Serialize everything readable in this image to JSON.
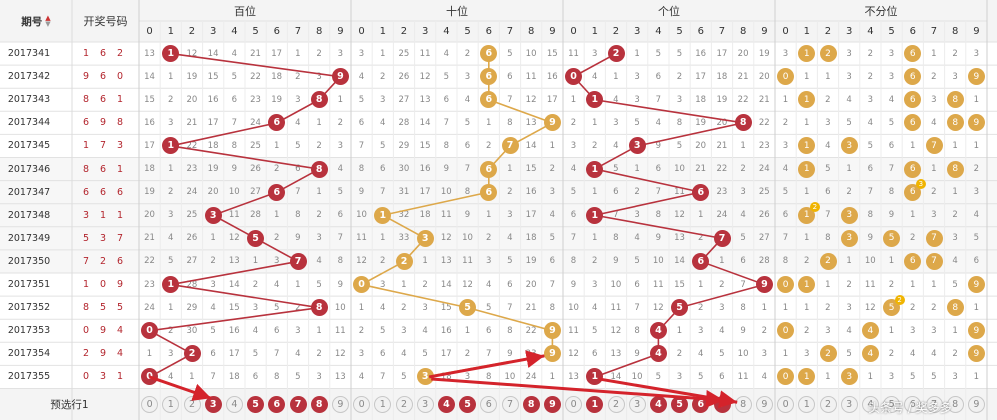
{
  "header": {
    "issue_label": "期号",
    "draw_label": "开奖号码",
    "groups": [
      "百位",
      "十位",
      "个位",
      "不分位"
    ],
    "digits": [
      "0",
      "1",
      "2",
      "3",
      "4",
      "5",
      "6",
      "7",
      "8",
      "9"
    ]
  },
  "colors": {
    "position_ball": "#b8323d",
    "tens_ball": "#dda84a",
    "nonpos_ball": "#dda84a",
    "count_badge": "#f0b400",
    "arrow": "#d4232b"
  },
  "rows": [
    {
      "issue": "2017341",
      "draw": [
        "1",
        "6",
        "2"
      ],
      "g0": [
        "13",
        "1",
        "12",
        "14",
        "4",
        "21",
        "17",
        "1",
        "2",
        "3"
      ],
      "g1": [
        "3",
        "1",
        "25",
        "11",
        "4",
        "2",
        "6",
        "5",
        "10",
        "15"
      ],
      "g2": [
        "11",
        "3",
        "2",
        "1",
        "5",
        "5",
        "16",
        "17",
        "20",
        "19"
      ],
      "g3": [
        "3",
        "1",
        "2",
        "3",
        "2",
        "3",
        "6",
        "1",
        "2",
        "3"
      ]
    },
    {
      "issue": "2017342",
      "draw": [
        "9",
        "6",
        "0"
      ],
      "g0": [
        "14",
        "1",
        "19",
        "15",
        "5",
        "22",
        "18",
        "2",
        "3",
        "9"
      ],
      "g1": [
        "4",
        "2",
        "26",
        "12",
        "5",
        "3",
        "6",
        "6",
        "11",
        "16"
      ],
      "g2": [
        "0",
        "4",
        "1",
        "3",
        "6",
        "2",
        "17",
        "18",
        "21",
        "20"
      ],
      "g3": [
        "0",
        "1",
        "1",
        "3",
        "2",
        "3",
        "6",
        "2",
        "3",
        "9"
      ]
    },
    {
      "issue": "2017343",
      "draw": [
        "8",
        "6",
        "1"
      ],
      "g0": [
        "15",
        "2",
        "20",
        "16",
        "6",
        "23",
        "19",
        "3",
        "8",
        "1"
      ],
      "g1": [
        "5",
        "3",
        "27",
        "13",
        "6",
        "4",
        "6",
        "7",
        "12",
        "17"
      ],
      "g2": [
        "1",
        "1",
        "4",
        "3",
        "7",
        "3",
        "18",
        "19",
        "22",
        "21"
      ],
      "g3": [
        "1",
        "1",
        "2",
        "4",
        "3",
        "4",
        "6",
        "3",
        "8",
        "1"
      ]
    },
    {
      "issue": "2017344",
      "draw": [
        "6",
        "9",
        "8"
      ],
      "g0": [
        "16",
        "3",
        "21",
        "17",
        "7",
        "24",
        "6",
        "4",
        "1",
        "2"
      ],
      "g1": [
        "6",
        "4",
        "28",
        "14",
        "7",
        "5",
        "1",
        "8",
        "13",
        "9"
      ],
      "g2": [
        "2",
        "1",
        "3",
        "5",
        "4",
        "8",
        "19",
        "20",
        "8",
        "22"
      ],
      "g3": [
        "2",
        "1",
        "3",
        "5",
        "4",
        "5",
        "6",
        "4",
        "8",
        "9"
      ]
    },
    {
      "issue": "2017345",
      "draw": [
        "1",
        "7",
        "3"
      ],
      "g0": [
        "17",
        "1",
        "22",
        "18",
        "8",
        "25",
        "1",
        "5",
        "2",
        "3"
      ],
      "g1": [
        "7",
        "5",
        "29",
        "15",
        "8",
        "6",
        "2",
        "7",
        "14",
        "1"
      ],
      "g2": [
        "3",
        "2",
        "4",
        "3",
        "9",
        "5",
        "20",
        "21",
        "1",
        "23"
      ],
      "g3": [
        "3",
        "1",
        "4",
        "3",
        "5",
        "6",
        "1",
        "7",
        "1",
        "1"
      ]
    },
    {
      "issue": "2017346",
      "draw": [
        "8",
        "6",
        "1"
      ],
      "g0": [
        "18",
        "1",
        "23",
        "19",
        "9",
        "26",
        "2",
        "6",
        "8",
        "4"
      ],
      "g1": [
        "8",
        "6",
        "30",
        "16",
        "9",
        "7",
        "6",
        "1",
        "15",
        "2"
      ],
      "g2": [
        "4",
        "1",
        "5",
        "1",
        "6",
        "10",
        "21",
        "22",
        "2",
        "24"
      ],
      "g3": [
        "4",
        "1",
        "5",
        "1",
        "6",
        "7",
        "6",
        "1",
        "8",
        "2"
      ]
    },
    {
      "issue": "2017347",
      "draw": [
        "6",
        "6",
        "6"
      ],
      "g0": [
        "19",
        "2",
        "24",
        "20",
        "10",
        "27",
        "6",
        "7",
        "1",
        "5"
      ],
      "g1": [
        "9",
        "7",
        "31",
        "17",
        "10",
        "8",
        "6",
        "2",
        "16",
        "3"
      ],
      "g2": [
        "5",
        "1",
        "6",
        "2",
        "7",
        "11",
        "6",
        "23",
        "3",
        "25"
      ],
      "g3": [
        "5",
        "1",
        "6",
        "2",
        "7",
        "8",
        "6",
        "2",
        "1",
        "3"
      ]
    },
    {
      "issue": "2017348",
      "draw": [
        "3",
        "1",
        "1"
      ],
      "g0": [
        "20",
        "3",
        "25",
        "3",
        "11",
        "28",
        "1",
        "8",
        "2",
        "6"
      ],
      "g1": [
        "10",
        "1",
        "32",
        "18",
        "11",
        "9",
        "1",
        "3",
        "17",
        "4"
      ],
      "g2": [
        "6",
        "1",
        "7",
        "3",
        "8",
        "12",
        "1",
        "24",
        "4",
        "26"
      ],
      "g3": [
        "6",
        "1",
        "7",
        "3",
        "8",
        "9",
        "1",
        "3",
        "2",
        "4"
      ]
    },
    {
      "issue": "2017349",
      "draw": [
        "5",
        "3",
        "7"
      ],
      "g0": [
        "21",
        "4",
        "26",
        "1",
        "12",
        "5",
        "2",
        "9",
        "3",
        "7"
      ],
      "g1": [
        "11",
        "1",
        "33",
        "3",
        "12",
        "10",
        "2",
        "4",
        "18",
        "5"
      ],
      "g2": [
        "7",
        "1",
        "8",
        "4",
        "9",
        "13",
        "2",
        "7",
        "5",
        "27"
      ],
      "g3": [
        "7",
        "1",
        "8",
        "3",
        "9",
        "5",
        "2",
        "7",
        "3",
        "5"
      ]
    },
    {
      "issue": "2017350",
      "draw": [
        "7",
        "2",
        "6"
      ],
      "g0": [
        "22",
        "5",
        "27",
        "2",
        "13",
        "1",
        "3",
        "7",
        "4",
        "8"
      ],
      "g1": [
        "12",
        "2",
        "2",
        "1",
        "13",
        "11",
        "3",
        "5",
        "19",
        "6"
      ],
      "g2": [
        "8",
        "2",
        "9",
        "5",
        "10",
        "14",
        "6",
        "1",
        "6",
        "28"
      ],
      "g3": [
        "8",
        "2",
        "2",
        "1",
        "10",
        "1",
        "6",
        "7",
        "4",
        "6"
      ]
    },
    {
      "issue": "2017351",
      "draw": [
        "1",
        "0",
        "9"
      ],
      "g0": [
        "23",
        "1",
        "28",
        "3",
        "14",
        "2",
        "4",
        "1",
        "5",
        "9"
      ],
      "g1": [
        "0",
        "3",
        "1",
        "2",
        "14",
        "12",
        "4",
        "6",
        "20",
        "7"
      ],
      "g2": [
        "9",
        "3",
        "10",
        "6",
        "11",
        "15",
        "1",
        "2",
        "7",
        "9"
      ],
      "g3": [
        "0",
        "1",
        "1",
        "2",
        "11",
        "2",
        "1",
        "1",
        "5",
        "9"
      ]
    },
    {
      "issue": "2017352",
      "draw": [
        "8",
        "5",
        "5"
      ],
      "g0": [
        "24",
        "1",
        "29",
        "4",
        "15",
        "3",
        "5",
        "2",
        "8",
        "10"
      ],
      "g1": [
        "1",
        "4",
        "2",
        "3",
        "15",
        "5",
        "5",
        "7",
        "21",
        "8"
      ],
      "g2": [
        "10",
        "4",
        "11",
        "7",
        "12",
        "5",
        "2",
        "3",
        "8",
        "1"
      ],
      "g3": [
        "1",
        "1",
        "2",
        "3",
        "12",
        "5",
        "2",
        "2",
        "8",
        "1"
      ]
    },
    {
      "issue": "2017353",
      "draw": [
        "0",
        "9",
        "4"
      ],
      "g0": [
        "0",
        "2",
        "30",
        "5",
        "16",
        "4",
        "6",
        "3",
        "1",
        "11"
      ],
      "g1": [
        "2",
        "5",
        "3",
        "4",
        "16",
        "1",
        "6",
        "8",
        "22",
        "9"
      ],
      "g2": [
        "11",
        "5",
        "12",
        "8",
        "4",
        "1",
        "3",
        "4",
        "9",
        "2"
      ],
      "g3": [
        "0",
        "2",
        "3",
        "4",
        "4",
        "1",
        "3",
        "3",
        "1",
        "9"
      ]
    },
    {
      "issue": "2017354",
      "draw": [
        "2",
        "9",
        "4"
      ],
      "g0": [
        "1",
        "3",
        "2",
        "6",
        "17",
        "5",
        "7",
        "4",
        "2",
        "12"
      ],
      "g1": [
        "3",
        "6",
        "4",
        "5",
        "17",
        "2",
        "7",
        "9",
        "23",
        "9"
      ],
      "g2": [
        "12",
        "6",
        "13",
        "9",
        "4",
        "2",
        "4",
        "5",
        "10",
        "3"
      ],
      "g3": [
        "1",
        "3",
        "2",
        "5",
        "4",
        "2",
        "4",
        "4",
        "2",
        "9"
      ]
    },
    {
      "issue": "2017355",
      "draw": [
        "0",
        "3",
        "1"
      ],
      "g0": [
        "0",
        "4",
        "1",
        "7",
        "18",
        "6",
        "8",
        "5",
        "3",
        "13"
      ],
      "g1": [
        "4",
        "7",
        "5",
        "3",
        "18",
        "3",
        "8",
        "10",
        "24",
        "1"
      ],
      "g2": [
        "13",
        "1",
        "14",
        "10",
        "5",
        "3",
        "5",
        "6",
        "11",
        "4"
      ],
      "g3": [
        "0",
        "1",
        "1",
        "3",
        "1",
        "3",
        "5",
        "5",
        "3",
        "1"
      ]
    }
  ],
  "prediction": {
    "label": "预选行1",
    "groups": [
      {
        "digits": [
          "0",
          "1",
          "2",
          "3",
          "4",
          "5",
          "6",
          "7",
          "8",
          "9"
        ],
        "selected": [
          3,
          5,
          6,
          7,
          8
        ]
      },
      {
        "digits": [
          "0",
          "1",
          "2",
          "3",
          "4",
          "5",
          "6",
          "7",
          "8",
          "9"
        ],
        "selected": [
          4,
          5,
          8,
          9
        ]
      },
      {
        "digits": [
          "0",
          "1",
          "2",
          "3",
          "4",
          "5",
          "6",
          "7",
          "8",
          "9"
        ],
        "selected": [
          1,
          4,
          5,
          6,
          7
        ]
      },
      {
        "digits": [
          "0",
          "1",
          "2",
          "3",
          "4",
          "5",
          "6",
          "7",
          "8",
          "9"
        ],
        "selected": []
      }
    ]
  },
  "watermark": "头条号 / 奖多多",
  "ball_sets": {
    "hundreds": [
      1,
      9,
      8,
      6,
      1,
      8,
      6,
      3,
      5,
      7,
      1,
      8,
      0,
      2,
      0
    ],
    "tens": [
      6,
      6,
      6,
      9,
      7,
      6,
      6,
      1,
      3,
      2,
      0,
      5,
      9,
      9,
      3
    ],
    "ones": [
      2,
      0,
      1,
      8,
      3,
      1,
      6,
      1,
      7,
      6,
      9,
      5,
      4,
      4,
      1
    ],
    "nonpos": [
      [
        1,
        2,
        6
      ],
      [
        0,
        6,
        9
      ],
      [
        1,
        6,
        8
      ],
      [
        6,
        8,
        9
      ],
      [
        1,
        3,
        7
      ],
      [
        1,
        6,
        8
      ],
      [
        6
      ],
      [
        1,
        3
      ],
      [
        3,
        5,
        7
      ],
      [
        2,
        6,
        7
      ],
      [
        0,
        1,
        9
      ],
      [
        5,
        8
      ],
      [
        0,
        4,
        9
      ],
      [
        2,
        4,
        9
      ],
      [
        0,
        1,
        3
      ]
    ],
    "counts": [
      [],
      [],
      [],
      [],
      [],
      [],
      [
        [
          6,
          3
        ]
      ],
      [
        [
          1,
          2
        ]
      ],
      [],
      [],
      [],
      [
        [
          5,
          2
        ]
      ],
      [],
      [],
      []
    ]
  }
}
